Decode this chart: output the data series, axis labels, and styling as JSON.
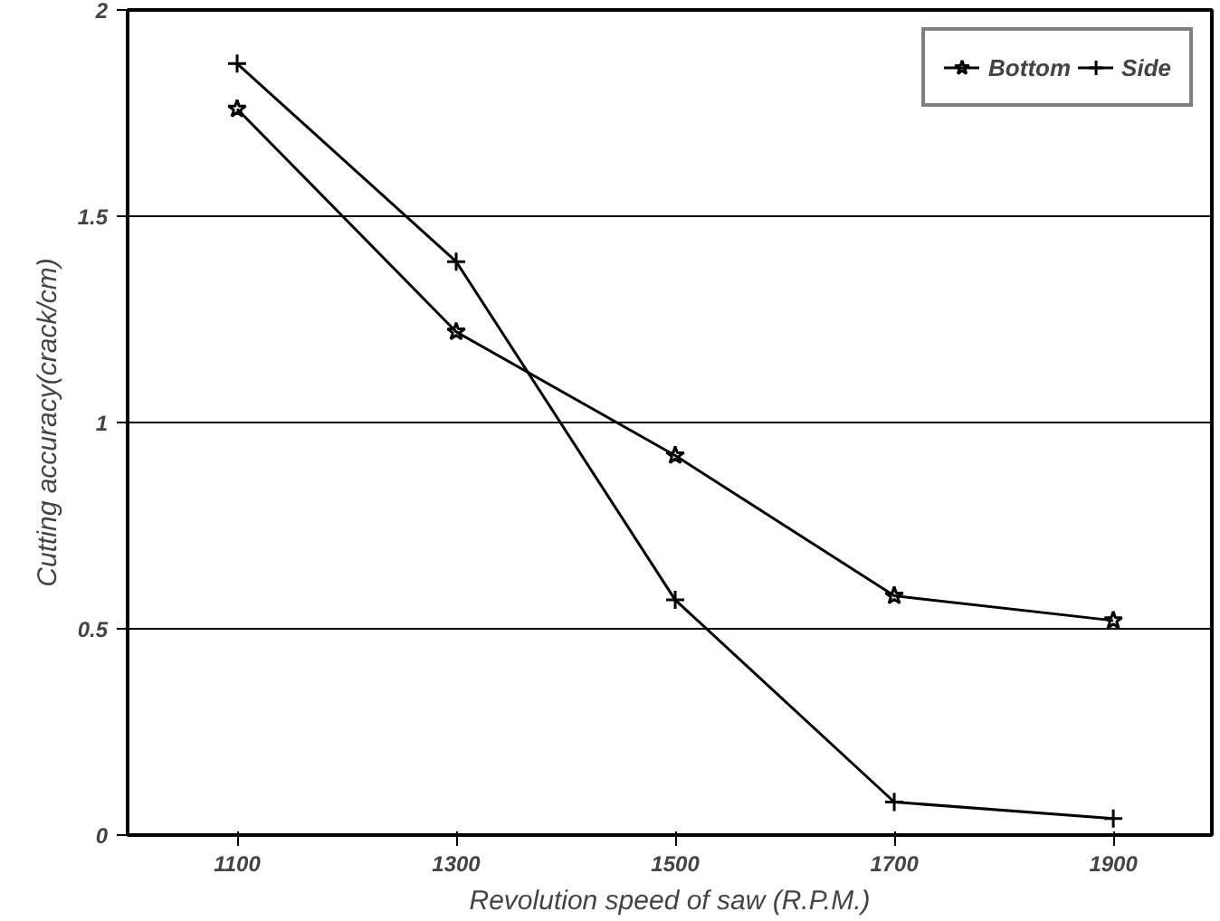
{
  "chart_data": {
    "type": "line",
    "xlabel": "Revolution speed of saw (R.P.M.)",
    "ylabel": "Cutting accuracy(crack/cm)",
    "x": [
      1100,
      1300,
      1500,
      1700,
      1900
    ],
    "xlim": [
      1000,
      1990
    ],
    "xticks": [
      1100,
      1300,
      1500,
      1700,
      1900
    ],
    "ylim": [
      0,
      2
    ],
    "yticks": [
      0,
      0.5,
      1,
      1.5,
      2
    ],
    "grid": "y",
    "legend": "top right",
    "line_style": "solid",
    "series": [
      {
        "name": "Bottom",
        "color": "#000000",
        "marker": "star",
        "values": [
          1.76,
          1.22,
          0.92,
          0.58,
          0.52
        ]
      },
      {
        "name": "Side",
        "color": "#000000",
        "marker": "cross",
        "values": [
          1.87,
          1.39,
          0.57,
          0.08,
          0.04
        ]
      }
    ]
  }
}
